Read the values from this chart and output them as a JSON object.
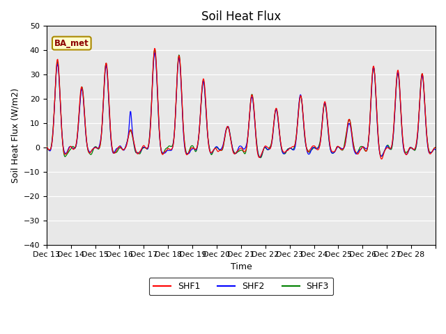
{
  "title": "Soil Heat Flux",
  "xlabel": "Time",
  "ylabel": "Soil Heat Flux (W/m2)",
  "ylim": [
    -40,
    50
  ],
  "yticks": [
    -40,
    -30,
    -20,
    -10,
    0,
    10,
    20,
    30,
    40,
    50
  ],
  "xtick_labels": [
    "Dec 13",
    "Dec 14",
    "Dec 15",
    "Dec 16",
    "Dec 17",
    "Dec 18",
    "Dec 19",
    "Dec 20",
    "Dec 21",
    "Dec 22",
    "Dec 23",
    "Dec 24",
    "Dec 25",
    "Dec 26",
    "Dec 27",
    "Dec 28"
  ],
  "legend_labels": [
    "SHF1",
    "SHF2",
    "SHF3"
  ],
  "line_colors": [
    "red",
    "blue",
    "green"
  ],
  "annotation_text": "BA_met",
  "annotation_bg": "#ffffcc",
  "annotation_edge": "#aa8800",
  "line_width": 0.9,
  "plot_bg_color": "#e8e8e8",
  "title_fontsize": 12,
  "axis_label_fontsize": 9,
  "tick_fontsize": 8,
  "num_days": 16,
  "pts_per_day": 48
}
